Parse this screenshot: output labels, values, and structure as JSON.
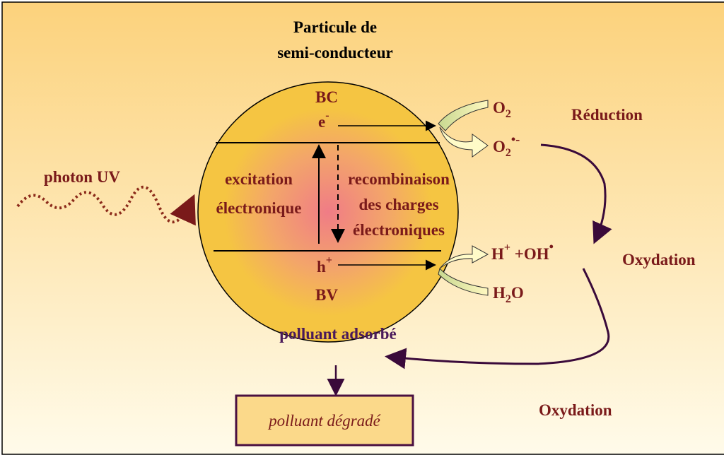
{
  "title": [
    "Particule de",
    "semi-conducteur"
  ],
  "bands": {
    "conduction": {
      "label": "BC",
      "carrier": "e",
      "charge": "-"
    },
    "valence": {
      "label": "BV",
      "carrier": "h",
      "charge": "+"
    }
  },
  "photon": "photon UV",
  "excitation": [
    "excitation",
    "électronique"
  ],
  "recombination": [
    "recombinaison",
    "des charges",
    "électroniques"
  ],
  "species": {
    "oxygen": {
      "base": "O",
      "sub": "2"
    },
    "superoxide": {
      "base": "O",
      "sub": "2",
      "sup": "•-"
    },
    "hydroxyl": {
      "proton": "H",
      "proton_sup": "+",
      "radical": " +OH",
      "radical_sup": "•"
    },
    "water": {
      "h": "H",
      "sub": "2",
      "o": "O"
    }
  },
  "processes": {
    "reduction": "Réduction",
    "oxidation_1": "Oxydation",
    "oxidation_2": "Oxydation"
  },
  "pollutant": {
    "adsorbed": "polluant adsorbé",
    "degraded": "polluant dégradé"
  }
}
